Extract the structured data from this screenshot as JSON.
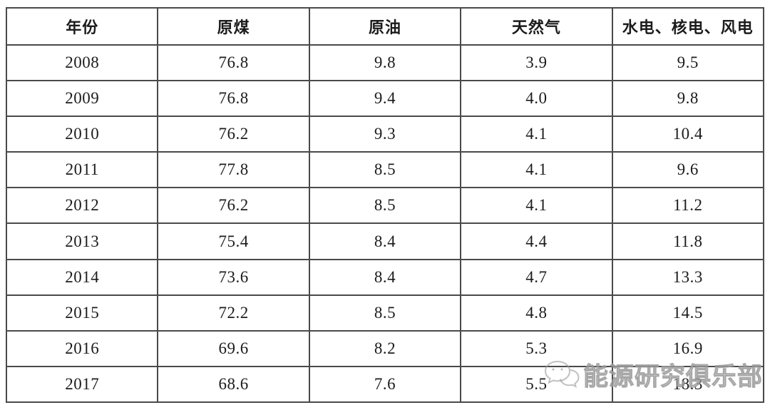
{
  "table": {
    "columns": [
      "年份",
      "原煤",
      "原油",
      "天然气",
      "水电、核电、风电"
    ],
    "rows": [
      [
        "2008",
        "76.8",
        "9.8",
        "3.9",
        "9.5"
      ],
      [
        "2009",
        "76.8",
        "9.4",
        "4.0",
        "9.8"
      ],
      [
        "2010",
        "76.2",
        "9.3",
        "4.1",
        "10.4"
      ],
      [
        "2011",
        "77.8",
        "8.5",
        "4.1",
        "9.6"
      ],
      [
        "2012",
        "76.2",
        "8.5",
        "4.1",
        "11.2"
      ],
      [
        "2013",
        "75.4",
        "8.4",
        "4.4",
        "11.8"
      ],
      [
        "2014",
        "73.6",
        "8.4",
        "4.7",
        "13.3"
      ],
      [
        "2015",
        "72.2",
        "8.5",
        "4.8",
        "14.5"
      ],
      [
        "2016",
        "69.6",
        "8.2",
        "5.3",
        "16.9"
      ],
      [
        "2017",
        "68.6",
        "7.6",
        "5.5",
        "18.3"
      ]
    ],
    "border_color": "#4a4a4a",
    "text_color": "#1c1c1c"
  },
  "watermark": {
    "label": "能源研究俱乐部",
    "icon": "wechat-chat-bubbles-icon",
    "color": "#b0b0b0"
  },
  "chart_data": {
    "type": "table",
    "title": "",
    "categories": [
      "2008",
      "2009",
      "2010",
      "2011",
      "2012",
      "2013",
      "2014",
      "2015",
      "2016",
      "2017"
    ],
    "row_header_label": "年份",
    "series": [
      {
        "name": "原煤",
        "values": [
          76.8,
          76.8,
          76.2,
          77.8,
          76.2,
          75.4,
          73.6,
          72.2,
          69.6,
          68.6
        ]
      },
      {
        "name": "原油",
        "values": [
          9.8,
          9.4,
          9.3,
          8.5,
          8.5,
          8.4,
          8.4,
          8.5,
          8.2,
          7.6
        ]
      },
      {
        "name": "天然气",
        "values": [
          3.9,
          4.0,
          4.1,
          4.1,
          4.1,
          4.4,
          4.7,
          4.8,
          5.3,
          5.5
        ]
      },
      {
        "name": "水电、核电、风电",
        "values": [
          9.5,
          9.8,
          10.4,
          9.6,
          11.2,
          11.8,
          13.3,
          14.5,
          16.9,
          18.3
        ]
      }
    ]
  }
}
